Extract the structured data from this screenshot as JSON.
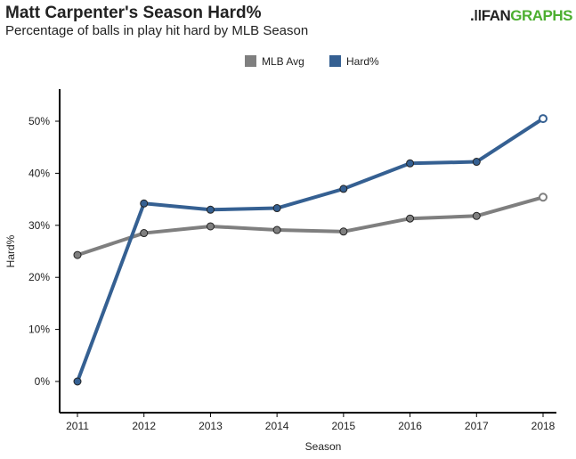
{
  "logo": {
    "part1": ".ǀǀFAN",
    "part2": "GRAPHS"
  },
  "chart_data": {
    "type": "line",
    "title": "Matt Carpenter's Season Hard%",
    "subtitle": "Percentage of balls in play hit hard by MLB Season",
    "xlabel": "Season",
    "ylabel": "Hard%",
    "x": [
      2011,
      2012,
      2013,
      2014,
      2015,
      2016,
      2017,
      2018
    ],
    "ylim": [
      0,
      55
    ],
    "yticks": [
      "0%",
      "10%",
      "20%",
      "30%",
      "40%",
      "50%"
    ],
    "legend_position": "top-center",
    "series": [
      {
        "name": "MLB Avg",
        "color": "#7f7f7f",
        "values": [
          24.3,
          28.5,
          29.8,
          29.1,
          28.8,
          31.3,
          31.8,
          35.4
        ]
      },
      {
        "name": "Hard%",
        "color": "#356092",
        "values": [
          0.0,
          34.2,
          33.0,
          33.3,
          37.0,
          41.9,
          42.2,
          50.5
        ]
      }
    ]
  }
}
